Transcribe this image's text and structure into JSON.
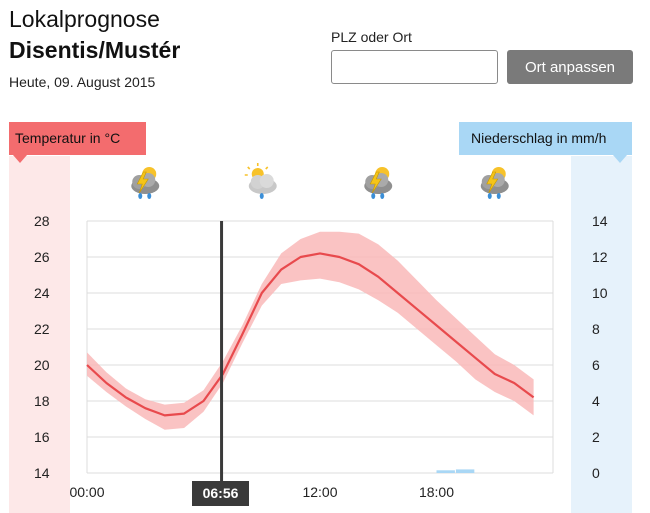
{
  "header": {
    "title": "Lokalprognose",
    "location": "Disentis/Mustér",
    "date": "Heute, 09. August 2015"
  },
  "search": {
    "label": "PLZ oder Ort",
    "placeholder": "",
    "value": "",
    "button_label": "Ort anpassen"
  },
  "legend": {
    "temperature_label": "Temperatur in °C",
    "precipitation_label": "Niederschlag in mm/h"
  },
  "colors": {
    "temperature_line": "#e84a4d",
    "temperature_band": "#f9b9b9",
    "precipitation_bar": "#a9d7f5",
    "current_time_line": "#3a3a3a"
  },
  "weather_icons": [
    {
      "hour": 3,
      "name": "thunderstorm-rain-icon"
    },
    {
      "hour": 9,
      "name": "partly-cloudy-rain-icon"
    },
    {
      "hour": 15,
      "name": "thunderstorm-rain-icon"
    },
    {
      "hour": 21,
      "name": "thunderstorm-rain-icon"
    }
  ],
  "current_time": {
    "label": "06:56",
    "hour": 6.93
  },
  "chart_data": {
    "type": "line",
    "x_ticks": [
      "00:00",
      "12:00",
      "18:00"
    ],
    "x_tick_hours": [
      0,
      12,
      18
    ],
    "x_range_hours": [
      0,
      24
    ],
    "y_left": {
      "ticks": [
        28,
        26,
        24,
        22,
        20,
        18,
        16,
        14
      ],
      "range": [
        14,
        28
      ]
    },
    "y_right": {
      "ticks": [
        14,
        12,
        10,
        8,
        6,
        4,
        2,
        0
      ],
      "range": [
        0,
        14
      ]
    },
    "temperature": {
      "hours": [
        0,
        1,
        2,
        3,
        4,
        5,
        6,
        7,
        8,
        9,
        10,
        11,
        12,
        13,
        14,
        15,
        16,
        17,
        18,
        19,
        20,
        21,
        22,
        23
      ],
      "values": [
        20.0,
        19.0,
        18.2,
        17.6,
        17.2,
        17.3,
        18.0,
        19.5,
        21.7,
        24.0,
        25.3,
        26.0,
        26.2,
        26.0,
        25.6,
        24.9,
        24.0,
        23.1,
        22.2,
        21.3,
        20.4,
        19.5,
        19.0,
        18.2
      ],
      "lower": [
        19.4,
        18.5,
        17.7,
        17.0,
        16.4,
        16.5,
        17.4,
        19.0,
        21.2,
        23.3,
        24.5,
        24.7,
        24.8,
        24.6,
        24.2,
        23.6,
        22.9,
        22.0,
        21.1,
        20.2,
        19.2,
        18.5,
        18.0,
        17.2
      ],
      "upper": [
        20.7,
        19.6,
        18.7,
        18.1,
        17.8,
        17.9,
        18.6,
        20.2,
        22.2,
        24.5,
        26.2,
        27.0,
        27.4,
        27.4,
        27.3,
        26.7,
        25.8,
        24.7,
        23.6,
        22.6,
        21.6,
        20.6,
        20.0,
        19.2
      ]
    },
    "precipitation": {
      "hours": [
        18,
        19
      ],
      "values": [
        0.15,
        0.2
      ]
    }
  }
}
